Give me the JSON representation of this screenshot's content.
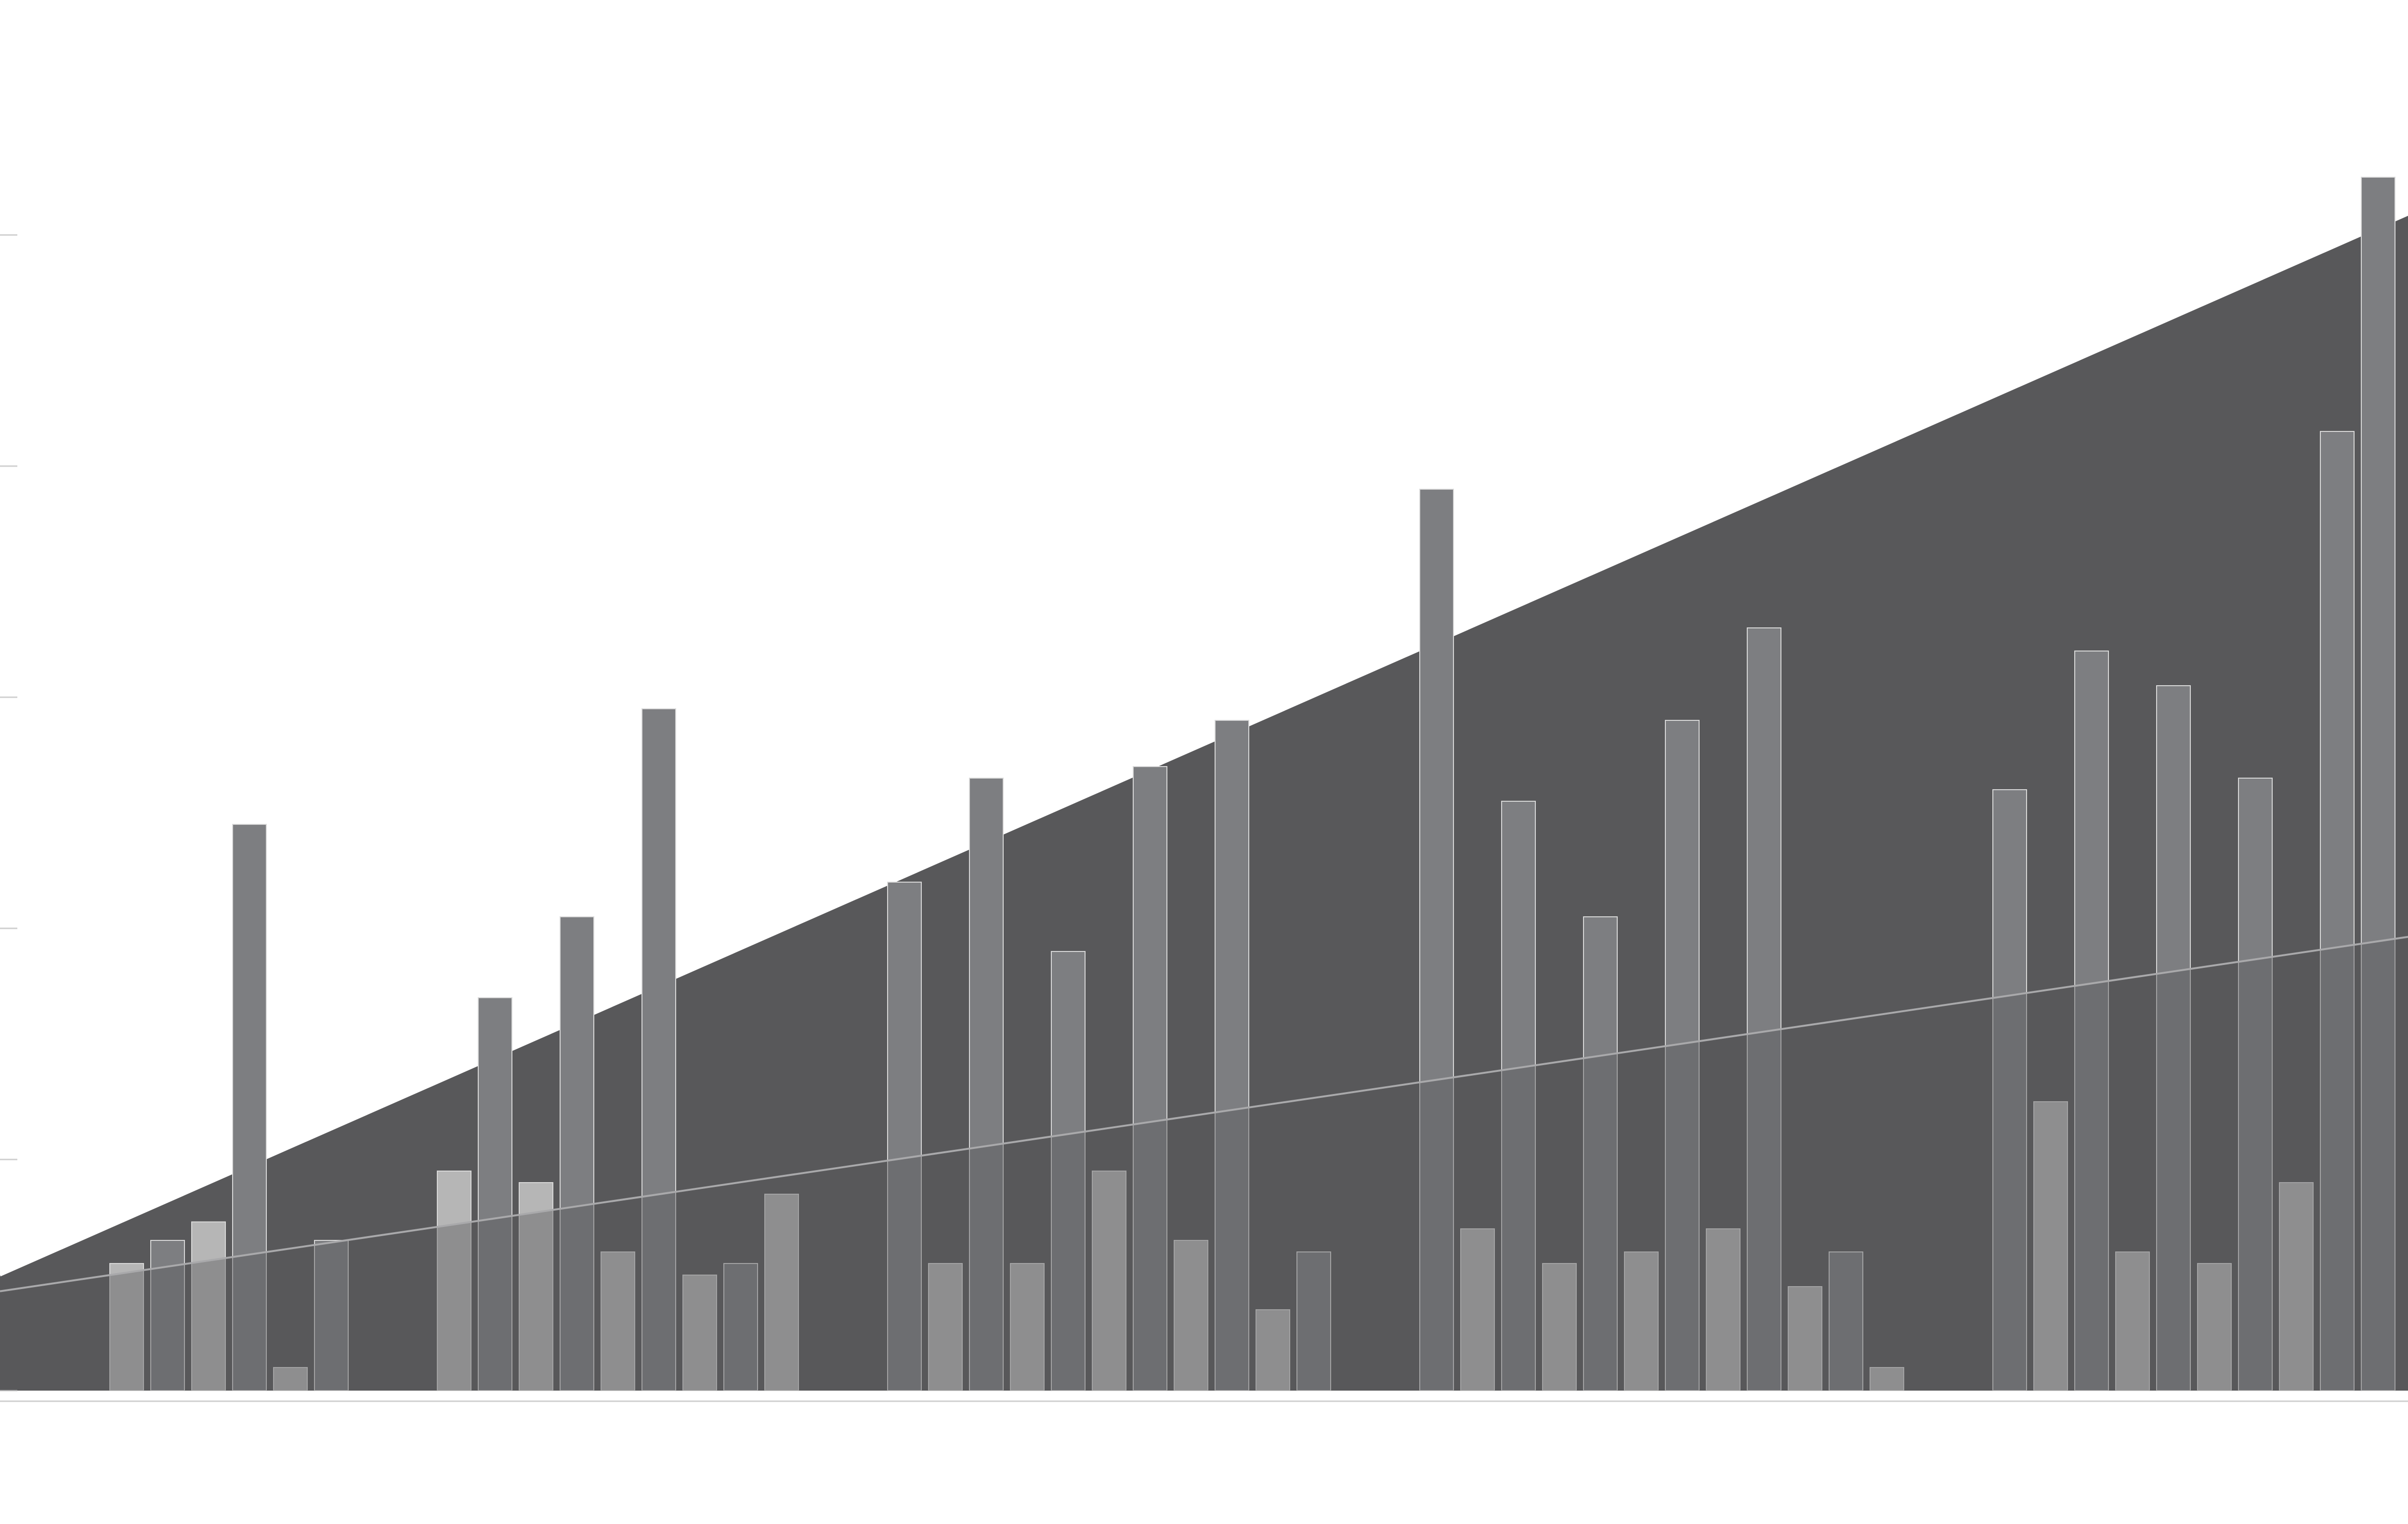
{
  "chart_data": {
    "type": "bar",
    "title": "",
    "xlabel": "",
    "ylabel": "",
    "ylim": [
      0,
      5.6
    ],
    "grid": false,
    "legend": "none",
    "colors": {
      "background": "#ffffff",
      "area_fill": "#58585a",
      "trend_line_upper": "#ffffff",
      "trend_line_lower": "#a9a9ab",
      "bar_light": "#b6b6b6",
      "bar_dark": "#7d7e81",
      "axis": "#cfcfcf"
    },
    "background_area": {
      "x_start": 0,
      "x_end": 60,
      "upper_start": 0.5,
      "upper_end": 5.2,
      "lower_start": 0.43,
      "lower_end": 2.0
    },
    "groups": [
      {
        "bars": [
          {
            "tone": "light",
            "value": 0.55
          },
          {
            "tone": "dark",
            "value": 0.65
          },
          {
            "tone": "light",
            "value": 0.73
          },
          {
            "tone": "dark",
            "value": 2.45
          },
          {
            "tone": "light",
            "value": 0.1
          },
          {
            "tone": "dark",
            "value": 0.65
          }
        ]
      },
      {
        "bars": [
          {
            "tone": "light",
            "value": 0.95
          },
          {
            "tone": "dark",
            "value": 1.7
          },
          {
            "tone": "light",
            "value": 0.9
          },
          {
            "tone": "dark",
            "value": 2.05
          },
          {
            "tone": "light",
            "value": 0.6
          },
          {
            "tone": "dark",
            "value": 2.95
          },
          {
            "tone": "light",
            "value": 0.5
          },
          {
            "tone": "dark",
            "value": 0.55
          },
          {
            "tone": "light",
            "value": 0.85
          }
        ]
      },
      {
        "bars": [
          {
            "tone": "dark",
            "value": 2.2
          },
          {
            "tone": "light",
            "value": 0.55
          },
          {
            "tone": "dark",
            "value": 2.65
          },
          {
            "tone": "light",
            "value": 0.55
          },
          {
            "tone": "dark",
            "value": 1.9
          },
          {
            "tone": "light",
            "value": 0.95
          },
          {
            "tone": "dark",
            "value": 2.7
          },
          {
            "tone": "light",
            "value": 0.65
          },
          {
            "tone": "dark",
            "value": 2.9
          },
          {
            "tone": "light",
            "value": 0.35
          },
          {
            "tone": "dark",
            "value": 0.6
          }
        ]
      },
      {
        "bars": [
          {
            "tone": "dark",
            "value": 3.9
          },
          {
            "tone": "light",
            "value": 0.7
          },
          {
            "tone": "dark",
            "value": 2.55
          },
          {
            "tone": "light",
            "value": 0.55
          },
          {
            "tone": "dark",
            "value": 2.05
          },
          {
            "tone": "light",
            "value": 0.6
          },
          {
            "tone": "dark",
            "value": 2.9
          },
          {
            "tone": "light",
            "value": 0.7
          },
          {
            "tone": "dark",
            "value": 3.3
          },
          {
            "tone": "light",
            "value": 0.45
          },
          {
            "tone": "dark",
            "value": 0.6
          },
          {
            "tone": "light",
            "value": 0.1
          }
        ]
      },
      {
        "bars": [
          {
            "tone": "dark",
            "value": 2.6
          },
          {
            "tone": "light",
            "value": 1.25
          },
          {
            "tone": "dark",
            "value": 3.2
          },
          {
            "tone": "light",
            "value": 0.6
          },
          {
            "tone": "dark",
            "value": 3.05
          },
          {
            "tone": "light",
            "value": 0.55
          },
          {
            "tone": "dark",
            "value": 2.65
          },
          {
            "tone": "light",
            "value": 0.9
          },
          {
            "tone": "dark",
            "value": 4.15
          },
          {
            "tone": "dark",
            "value": 5.25
          }
        ]
      }
    ]
  }
}
